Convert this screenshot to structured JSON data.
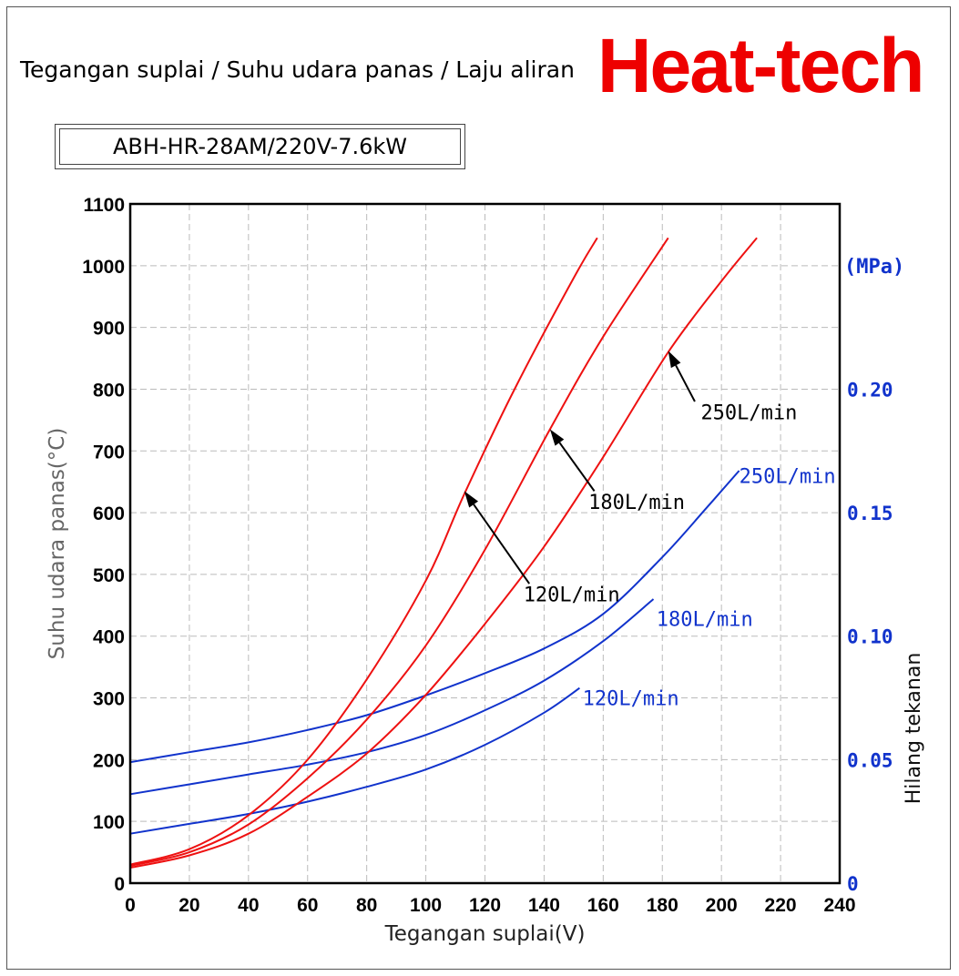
{
  "header": {
    "title": "Tegangan suplai / Suhu udara panas / Laju aliran",
    "brand": "Heat-tech",
    "model": "ABH-HR-28AM/220V-7.6kW"
  },
  "colors": {
    "temperature": "#ee1111",
    "pressure": "#1133cc",
    "grid": "#bbbbbb",
    "axis": "#000000"
  },
  "chart_data": {
    "type": "line",
    "xlabel": "Tegangan suplai(V)",
    "ylabel": "Suhu udara panas(°C)",
    "y2label": "Hilang tekanan",
    "y2unit": "(MPa)",
    "xlim": [
      0,
      240
    ],
    "ylim": [
      0,
      1100
    ],
    "y2lim": [
      0,
      0.275
    ],
    "x_ticks": [
      "0",
      "20",
      "40",
      "60",
      "80",
      "100",
      "120",
      "140",
      "160",
      "180",
      "200",
      "220",
      "240"
    ],
    "y_ticks": [
      "0",
      "100",
      "200",
      "300",
      "400",
      "500",
      "600",
      "700",
      "800",
      "900",
      "1000",
      "1100"
    ],
    "y2_ticks": [
      "0",
      "0.05",
      "0.10",
      "0.15",
      "0.20"
    ],
    "temperature_series": [
      {
        "name": "120L/min",
        "label": "120L/min",
        "axis": "left",
        "x": [
          0,
          20,
          40,
          60,
          80,
          100,
          113,
          130,
          150,
          158
        ],
        "y": [
          30,
          55,
          110,
          200,
          330,
          490,
          630,
          800,
          980,
          1045
        ],
        "arrow": {
          "tip": [
            113,
            635
          ],
          "tail": [
            135,
            485
          ]
        },
        "label_at": [
          133,
          468
        ]
      },
      {
        "name": "180L/min",
        "label": "180L/min",
        "axis": "left",
        "x": [
          0,
          20,
          40,
          60,
          80,
          100,
          120,
          142,
          160,
          182
        ],
        "y": [
          28,
          50,
          95,
          170,
          265,
          385,
          540,
          735,
          885,
          1045
        ],
        "arrow": {
          "tip": [
            142,
            735
          ],
          "tail": [
            157,
            635
          ]
        },
        "label_at": [
          155,
          618
        ]
      },
      {
        "name": "250L/min",
        "label": "250L/min",
        "axis": "left",
        "x": [
          0,
          20,
          40,
          60,
          80,
          100,
          120,
          140,
          160,
          182,
          200,
          212
        ],
        "y": [
          25,
          45,
          80,
          140,
          210,
          305,
          420,
          545,
          690,
          860,
          975,
          1045
        ],
        "arrow": {
          "tip": [
            182,
            862
          ],
          "tail": [
            191,
            780
          ]
        },
        "label_at": [
          193,
          763
        ]
      }
    ],
    "pressure_series": [
      {
        "name": "120L/min",
        "label": "120L/min",
        "axis": "right",
        "x": [
          0,
          20,
          40,
          60,
          80,
          100,
          120,
          140,
          152
        ],
        "y": [
          0.02,
          0.024,
          0.028,
          0.033,
          0.039,
          0.046,
          0.056,
          0.069,
          0.079
        ],
        "label_at": [
          153,
          0.075
        ]
      },
      {
        "name": "180L/min",
        "label": "180L/min",
        "axis": "right",
        "x": [
          0,
          20,
          40,
          60,
          80,
          100,
          120,
          140,
          160,
          177
        ],
        "y": [
          0.036,
          0.04,
          0.044,
          0.048,
          0.053,
          0.06,
          0.07,
          0.082,
          0.098,
          0.115
        ],
        "label_at": [
          178,
          0.107
        ]
      },
      {
        "name": "250L/min",
        "label": "250L/min",
        "axis": "right",
        "x": [
          0,
          20,
          40,
          60,
          80,
          100,
          120,
          140,
          160,
          180,
          195,
          206
        ],
        "y": [
          0.049,
          0.053,
          0.057,
          0.062,
          0.068,
          0.076,
          0.085,
          0.095,
          0.109,
          0.132,
          0.152,
          0.167
        ],
        "label_at": [
          206,
          0.165
        ]
      }
    ]
  }
}
